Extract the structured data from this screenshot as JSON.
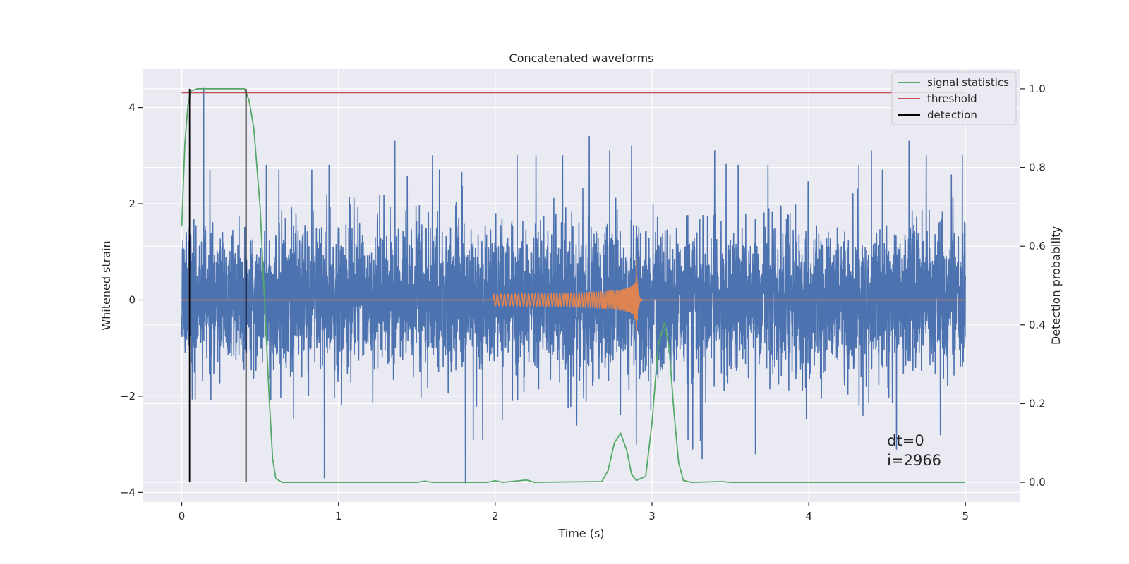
{
  "chart_data": {
    "type": "line",
    "title": "Concatenated waveforms",
    "xlabel": "Time (s)",
    "ylabel": "Whitened strain",
    "y2label": "Detection probability",
    "xlim": [
      -0.25,
      5.35
    ],
    "ylim": [
      -4.2,
      4.8
    ],
    "y2lim": [
      -0.05,
      1.05
    ],
    "x_ticks": [
      0,
      1,
      2,
      3,
      4,
      5
    ],
    "x_tick_labels": [
      "0",
      "1",
      "2",
      "3",
      "4",
      "5"
    ],
    "y_ticks": [
      -4,
      -2,
      0,
      2,
      4
    ],
    "y_tick_labels": [
      "−4",
      "−2",
      "0",
      "2",
      "4"
    ],
    "y2_ticks": [
      0.0,
      0.2,
      0.4,
      0.6,
      0.8,
      1.0
    ],
    "y2_tick_labels": [
      "0.0",
      "0.2",
      "0.4",
      "0.6",
      "0.8",
      "1.0"
    ],
    "grid": true,
    "legend_position": "top-right",
    "legend": [
      "signal statistics",
      "threshold",
      "detection"
    ],
    "annotations": [
      "dt=0",
      "i=2966"
    ],
    "colors": {
      "strain": "#4c72b0",
      "waveform": "#dd8452",
      "signal_statistics": "#55a868",
      "threshold": "#c44e52",
      "detection": "#000000",
      "plot_background": "#eaeaf2",
      "grid": "#ffffff"
    },
    "series": [
      {
        "axis": "left",
        "noise_std": 0.75,
        "peaks": [
          {
            "x": 0.14,
            "y": 4.4
          },
          {
            "x": 0.18,
            "y": 2.7
          },
          {
            "x": 0.54,
            "y": 2.8
          },
          {
            "x": 0.62,
            "y": 2.7
          },
          {
            "x": 0.83,
            "y": 2.7
          },
          {
            "x": 0.94,
            "y": 2.8
          },
          {
            "x": 1.36,
            "y": 3.3
          },
          {
            "x": 1.6,
            "y": 3.0
          },
          {
            "x": 2.14,
            "y": 3.0
          },
          {
            "x": 2.26,
            "y": 3.0
          },
          {
            "x": 2.43,
            "y": 3.0
          },
          {
            "x": 2.6,
            "y": 3.4
          },
          {
            "x": 2.73,
            "y": 3.1
          },
          {
            "x": 2.87,
            "y": 3.2
          },
          {
            "x": 3.4,
            "y": 3.1
          },
          {
            "x": 3.55,
            "y": 2.8
          },
          {
            "x": 3.74,
            "y": 2.8
          },
          {
            "x": 4.32,
            "y": 2.8
          },
          {
            "x": 4.4,
            "y": 3.1
          },
          {
            "x": 4.47,
            "y": 2.7
          },
          {
            "x": 4.64,
            "y": 3.3
          },
          {
            "x": 4.75,
            "y": 3.0
          },
          {
            "x": 4.91,
            "y": 2.6
          },
          {
            "x": 4.98,
            "y": 3.0
          }
        ],
        "troughs": [
          {
            "x": 0.91,
            "y": -3.7
          },
          {
            "x": 1.81,
            "y": -3.8
          },
          {
            "x": 1.86,
            "y": -2.9
          },
          {
            "x": 1.92,
            "y": -2.9
          },
          {
            "x": 2.52,
            "y": -2.6
          },
          {
            "x": 2.9,
            "y": -3.0
          },
          {
            "x": 3.23,
            "y": -2.9
          },
          {
            "x": 3.26,
            "y": -3.1
          },
          {
            "x": 3.32,
            "y": -3.3
          },
          {
            "x": 3.66,
            "y": -3.2
          },
          {
            "x": 4.56,
            "y": -3.1
          },
          {
            "x": 4.84,
            "y": -2.8
          }
        ]
      },
      {
        "axis": "left",
        "start": 1.99,
        "merger": 2.9,
        "amp_start": 0.12,
        "amp_peak": 0.85,
        "cycles": 62
      },
      {
        "name": "signal statistics",
        "axis": "right",
        "points": [
          [
            0.0,
            0.65
          ],
          [
            0.02,
            0.86
          ],
          [
            0.04,
            0.96
          ],
          [
            0.06,
            0.995
          ],
          [
            0.1,
            1.0
          ],
          [
            0.4,
            1.0
          ],
          [
            0.43,
            0.97
          ],
          [
            0.46,
            0.9
          ],
          [
            0.5,
            0.7
          ],
          [
            0.53,
            0.45
          ],
          [
            0.56,
            0.2
          ],
          [
            0.58,
            0.06
          ],
          [
            0.6,
            0.01
          ],
          [
            0.64,
            0.0
          ],
          [
            1.0,
            0.0
          ],
          [
            1.5,
            0.0
          ],
          [
            1.55,
            0.003
          ],
          [
            1.6,
            0.0
          ],
          [
            1.95,
            0.0
          ],
          [
            2.0,
            0.004
          ],
          [
            2.05,
            0.0
          ],
          [
            2.2,
            0.006
          ],
          [
            2.25,
            0.0
          ],
          [
            2.68,
            0.002
          ],
          [
            2.72,
            0.03
          ],
          [
            2.76,
            0.1
          ],
          [
            2.8,
            0.125
          ],
          [
            2.84,
            0.08
          ],
          [
            2.87,
            0.02
          ],
          [
            2.9,
            0.005
          ],
          [
            2.96,
            0.015
          ],
          [
            3.0,
            0.15
          ],
          [
            3.04,
            0.35
          ],
          [
            3.08,
            0.405
          ],
          [
            3.11,
            0.34
          ],
          [
            3.14,
            0.18
          ],
          [
            3.17,
            0.05
          ],
          [
            3.2,
            0.005
          ],
          [
            3.25,
            0.0
          ],
          [
            3.45,
            0.002
          ],
          [
            3.5,
            0.0
          ],
          [
            5.0,
            0.0
          ]
        ]
      },
      {
        "name": "threshold",
        "axis": "right",
        "value": 0.99,
        "x": [
          0.0,
          5.0
        ]
      },
      {
        "name": "detection",
        "axis": "right",
        "x": [
          0.05,
          0.41
        ],
        "y": [
          0.0,
          1.0
        ]
      }
    ]
  }
}
